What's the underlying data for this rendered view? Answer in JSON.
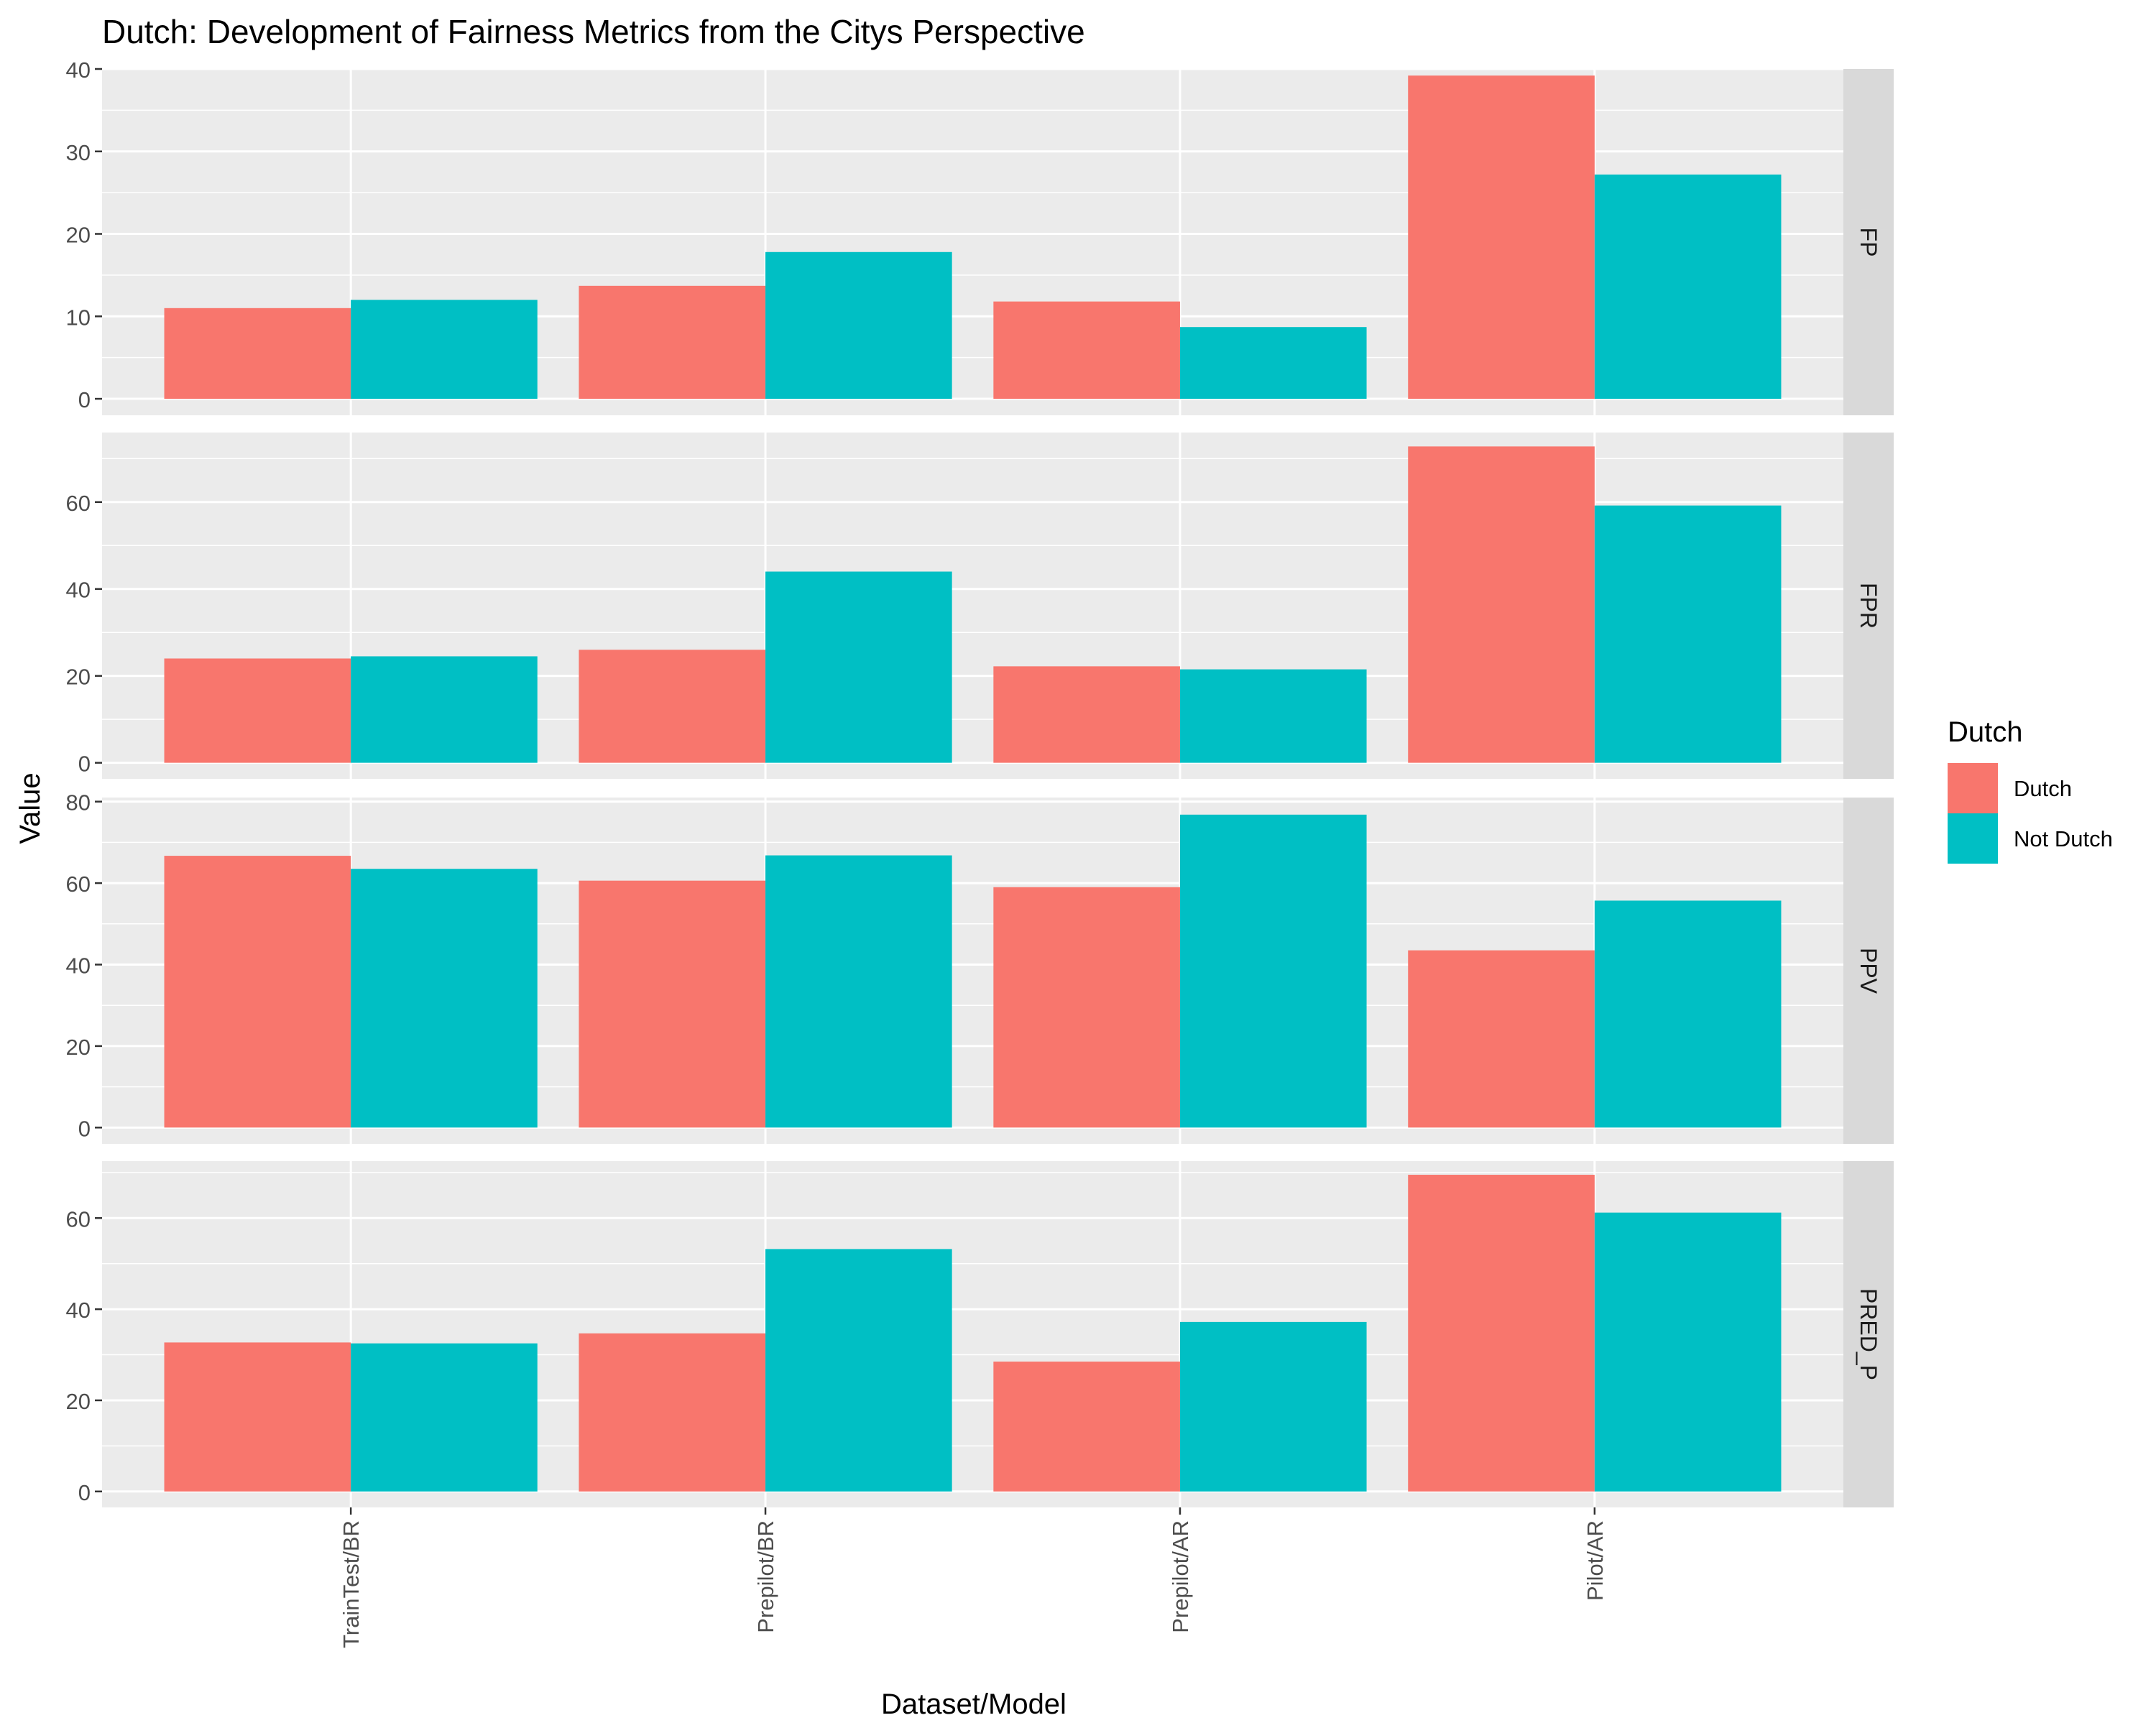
{
  "chart_data": {
    "type": "bar",
    "title": "Dutch: Development of Fairness Metrics from the Citys Perspective",
    "xlabel": "Dataset/Model",
    "ylabel": "Value",
    "categories": [
      "TrainTest/BR",
      "Prepilot/BR",
      "Prepilot/AR",
      "Pilot/AR"
    ],
    "legend": {
      "title": "Dutch",
      "position": "right",
      "entries": [
        {
          "name": "Dutch",
          "color": "#F8766D"
        },
        {
          "name": "Not Dutch",
          "color": "#00BFC4"
        }
      ]
    },
    "grid": true,
    "facets": [
      {
        "label": "FP",
        "ylim": [
          -2,
          40
        ],
        "yticks": [
          0,
          10,
          20,
          30,
          40
        ],
        "series": [
          {
            "name": "Dutch",
            "values": [
              11,
              13.7,
              11.8,
              39.2
            ]
          },
          {
            "name": "Not Dutch",
            "values": [
              12,
              17.8,
              8.7,
              27.2
            ]
          }
        ]
      },
      {
        "label": "FPR",
        "ylim": [
          -3.7,
          76
        ],
        "yticks": [
          0,
          20,
          40,
          60
        ],
        "series": [
          {
            "name": "Dutch",
            "values": [
              24,
              26,
              22.2,
              72.8
            ]
          },
          {
            "name": "Not Dutch",
            "values": [
              24.5,
              44,
              21.5,
              59.2
            ]
          }
        ]
      },
      {
        "label": "PPV",
        "ylim": [
          -4,
          81
        ],
        "yticks": [
          0,
          20,
          40,
          60,
          80
        ],
        "series": [
          {
            "name": "Dutch",
            "values": [
              66.7,
              60.6,
              59,
              43.5
            ]
          },
          {
            "name": "Not Dutch",
            "values": [
              63.5,
              66.8,
              76.8,
              55.7
            ]
          }
        ]
      },
      {
        "label": "PRED_P",
        "ylim": [
          -3.5,
          72.5
        ],
        "yticks": [
          0,
          20,
          40,
          60
        ],
        "series": [
          {
            "name": "Dutch",
            "values": [
              32.7,
              34.7,
              28.5,
              69.5
            ]
          },
          {
            "name": "Not Dutch",
            "values": [
              32.5,
              53.2,
              37.2,
              61.2
            ]
          }
        ]
      }
    ]
  }
}
